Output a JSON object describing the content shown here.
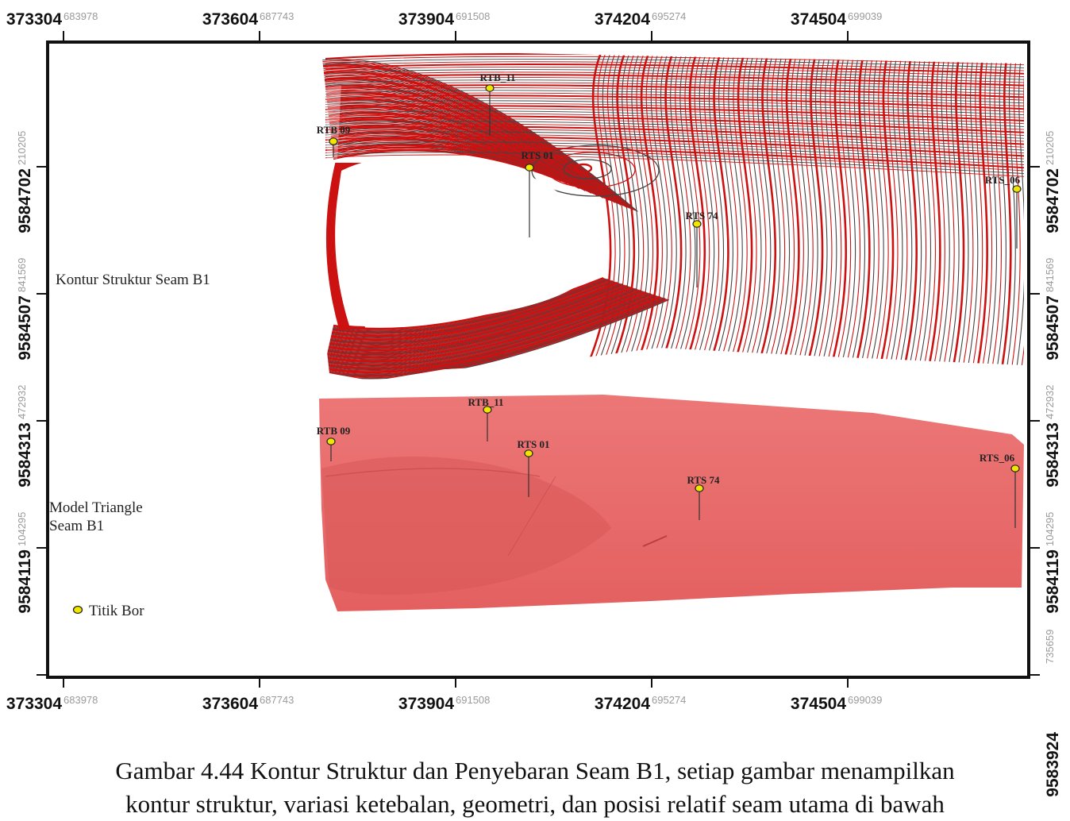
{
  "axes": {
    "x_ticks": [
      {
        "main": "373304",
        "sub": "683978"
      },
      {
        "main": "373604",
        "sub": "687743"
      },
      {
        "main": "373904",
        "sub": "691508"
      },
      {
        "main": "374204",
        "sub": "695274"
      },
      {
        "main": "374504",
        "sub": "699039"
      }
    ],
    "y_ticks": [
      {
        "main": "9584702",
        "sub": "210205"
      },
      {
        "main": "9584507",
        "sub": "841569"
      },
      {
        "main": "9584313",
        "sub": "472932"
      },
      {
        "main": "9584119",
        "sub": "104295"
      },
      {
        "main": "9583924",
        "sub": "735659"
      }
    ]
  },
  "labels": {
    "contour": "Kontur Struktur Seam B1",
    "model_line1": "Model Triangle",
    "model_line2": "Seam B1",
    "legend": "Titik Bor"
  },
  "wells_top": [
    "RTB_11",
    "RTB 09",
    "RTS 01",
    "RTS 74",
    "RTS_06"
  ],
  "wells_bottom": [
    "RTB_11",
    "RTB 09",
    "RTS 01",
    "RTS 74",
    "RTS_06"
  ],
  "colors": {
    "contour_major": "#cc1111",
    "contour_minor": "#444444",
    "model_fill": "#e86a6a",
    "well_marker": "#f2e600"
  },
  "caption": {
    "line1": "Gambar 4.44 Kontur Struktur dan Penyebaran Seam B1, setiap gambar menampilkan",
    "line2": "kontur struktur, variasi ketebalan, geometri, dan posisi relatif seam utama di bawah"
  }
}
